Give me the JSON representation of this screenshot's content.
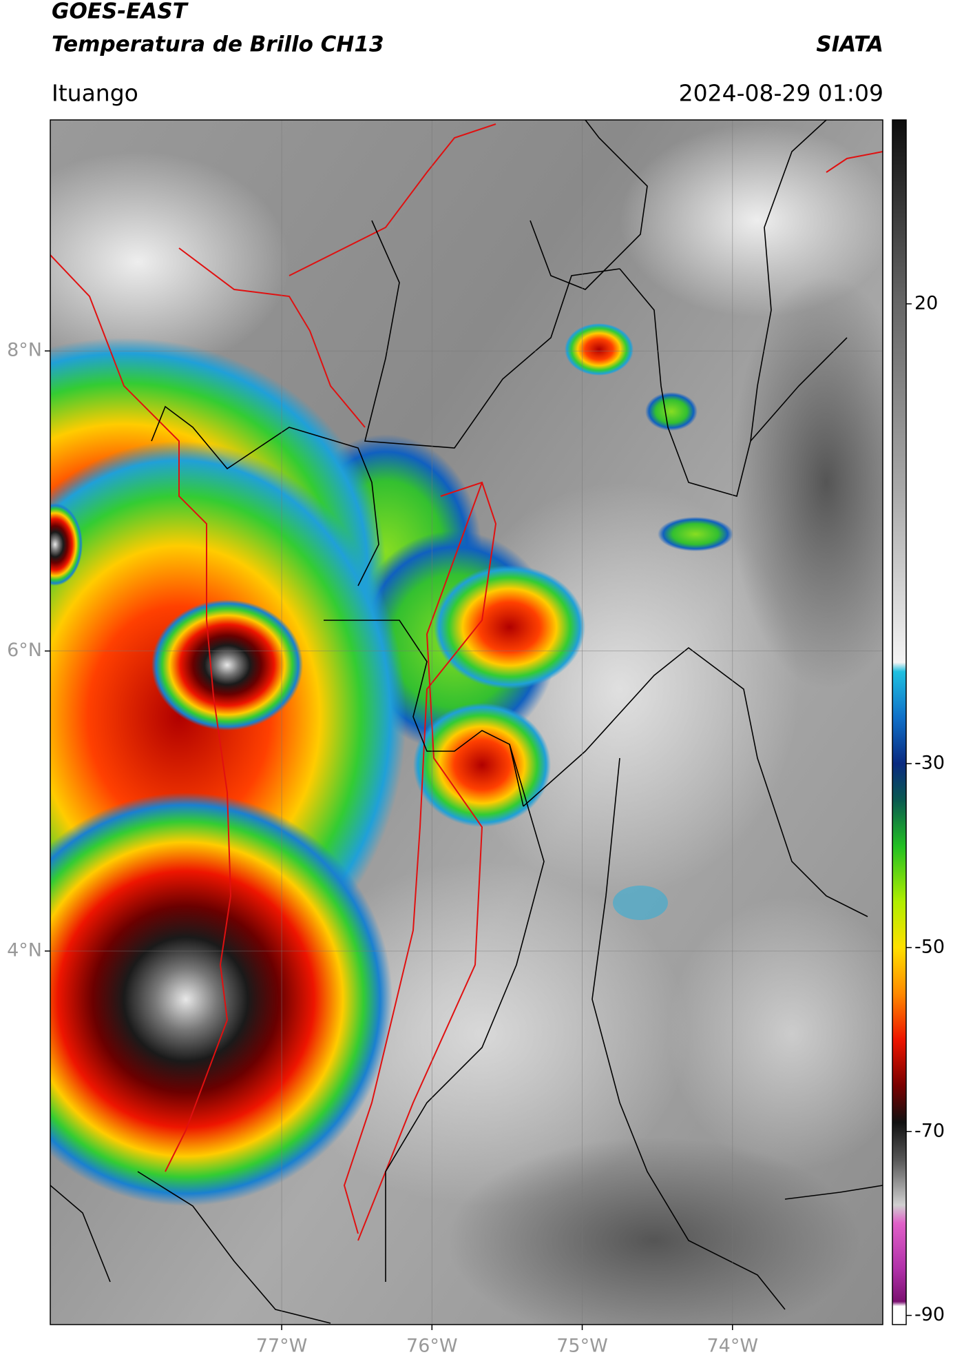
{
  "header": {
    "title": "GOES-EAST",
    "subtitle": "Temperatura de Brillo CH13",
    "source": "SIATA",
    "location": "Ituango",
    "datetime": "2024-08-29 01:09"
  },
  "map": {
    "xlim": [
      -78.54,
      -73.0
    ],
    "ylim": [
      1.51,
      9.54
    ],
    "xticks": [
      {
        "value": -77,
        "label": "77°W"
      },
      {
        "value": -76,
        "label": "76°W"
      },
      {
        "value": -75,
        "label": "75°W"
      },
      {
        "value": -74,
        "label": "74°W"
      }
    ],
    "yticks": [
      {
        "value": 8,
        "label": "8°N"
      },
      {
        "value": 6,
        "label": "6°N"
      },
      {
        "value": 4,
        "label": "4°N"
      }
    ],
    "grid": true
  },
  "colorbar": {
    "lim": [
      -91,
      40
    ],
    "ticks": [
      20,
      -30,
      -50,
      -70,
      -90
    ],
    "stops": [
      {
        "value": 40,
        "color": "#0d0d0d"
      },
      {
        "value": 30,
        "color": "#3a3a3a"
      },
      {
        "value": 20,
        "color": "#676767"
      },
      {
        "value": 0,
        "color": "#a8a8a8"
      },
      {
        "value": -19,
        "color": "#f4f4f4"
      },
      {
        "value": -20,
        "color": "#1fc0e0"
      },
      {
        "value": -25,
        "color": "#1070c8"
      },
      {
        "value": -30,
        "color": "#0a2a80"
      },
      {
        "value": -34,
        "color": "#0a5a50"
      },
      {
        "value": -39,
        "color": "#22c022"
      },
      {
        "value": -45,
        "color": "#b0ee00"
      },
      {
        "value": -50,
        "color": "#ffe000"
      },
      {
        "value": -55,
        "color": "#ff8a00"
      },
      {
        "value": -60,
        "color": "#ee1500"
      },
      {
        "value": -65,
        "color": "#7a0000"
      },
      {
        "value": -69,
        "color": "#111111"
      },
      {
        "value": -73,
        "color": "#555555"
      },
      {
        "value": -78,
        "color": "#d0d0d0"
      },
      {
        "value": -80,
        "color": "#e060c8"
      },
      {
        "value": -85,
        "color": "#b030a8"
      },
      {
        "value": -88.5,
        "color": "#7a1070"
      },
      {
        "value": -89,
        "color": "#ffffff"
      },
      {
        "value": -91,
        "color": "#ffffff"
      }
    ]
  }
}
